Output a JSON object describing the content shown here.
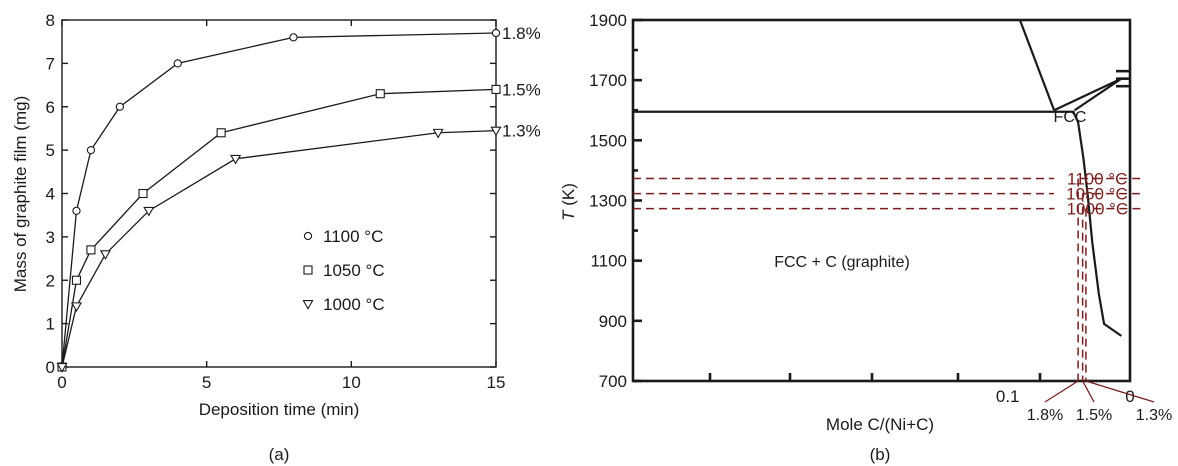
{
  "colors": {
    "ink": "#1a1a1a",
    "dashed": "#7a1f1f"
  },
  "chart_data": [
    {
      "type": "line",
      "panel": "(a)",
      "xlabel": "Deposition time (min)",
      "ylabel": "Mass of graphite film (mg)",
      "xlim": [
        0,
        15
      ],
      "ylim": [
        0,
        8
      ],
      "x_ticks": [
        0,
        5,
        10,
        15
      ],
      "y_ticks": [
        0,
        1,
        2,
        3,
        4,
        5,
        6,
        7,
        8
      ],
      "series": [
        {
          "name": "1100 °C",
          "marker": "circle",
          "end_label": "1.8%",
          "points": [
            [
              0,
              0
            ],
            [
              0.5,
              3.6
            ],
            [
              1,
              5.0
            ],
            [
              2,
              6.0
            ],
            [
              4,
              7.0
            ],
            [
              8,
              7.6
            ],
            [
              15,
              7.7
            ]
          ]
        },
        {
          "name": "1050 °C",
          "marker": "square",
          "end_label": "1.5%",
          "points": [
            [
              0,
              0
            ],
            [
              0.5,
              2.0
            ],
            [
              1,
              2.7
            ],
            [
              2.8,
              4.0
            ],
            [
              5.5,
              5.4
            ],
            [
              11,
              6.3
            ],
            [
              15,
              6.4
            ]
          ]
        },
        {
          "name": "1000 °C",
          "marker": "triangle-down",
          "end_label": "1.3%",
          "points": [
            [
              0,
              0
            ],
            [
              0.5,
              1.4
            ],
            [
              1.5,
              2.6
            ],
            [
              3,
              3.6
            ],
            [
              6,
              4.8
            ],
            [
              13,
              5.4
            ],
            [
              15,
              5.45
            ]
          ]
        }
      ],
      "legend_placement": "center-right"
    },
    {
      "type": "line",
      "panel": "(b)",
      "xlabel": "Mole C/(Ni+C)",
      "ylabel": "T (K)",
      "ylabel_italic": "T",
      "ylabel_unit": " (K)",
      "ylim": [
        700,
        1900
      ],
      "y_ticks": [
        700,
        900,
        1100,
        1300,
        1500,
        1700,
        1900
      ],
      "x_tick_labels": [
        {
          "label": "0.1",
          "value": 0.1
        },
        {
          "label": "0",
          "value": 0
        }
      ],
      "region_labels": [
        "FCC",
        "FCC + C (graphite)"
      ],
      "isotherms": [
        {
          "label": "1100 °C",
          "T": 1373,
          "label_x": 0.0072
        },
        {
          "label": "1050 °C",
          "T": 1323,
          "label_x": 0.0073
        },
        {
          "label": "1000 °C",
          "T": 1273,
          "label_x": 0.0071
        }
      ],
      "solubility_labels": [
        {
          "label": "1.8%",
          "value": 0.018
        },
        {
          "label": "1.5%",
          "value": 0.015
        },
        {
          "label": "1.3%",
          "value": 0.013
        }
      ],
      "boundaries": {
        "eutectic_T": 1595,
        "liquidus_left": [
          [
            0.081,
            1900
          ],
          [
            0.0385,
            1600
          ]
        ],
        "liquidus_right": [
          [
            0.0385,
            1600
          ],
          [
            0.0005,
            1705
          ]
        ],
        "fcc_boundary": [
          [
            0.0205,
            1600
          ],
          [
            0.0005,
            1705
          ]
        ],
        "solvus": [
          [
            0.0215,
            1595
          ],
          [
            0.018,
            1560
          ],
          [
            0.0145,
            1440
          ],
          [
            0.012,
            1320
          ],
          [
            0.0095,
            1160
          ],
          [
            0.0065,
            990
          ],
          [
            0.0045,
            890
          ],
          [
            0.0005,
            850
          ]
        ]
      }
    }
  ],
  "panel_captions": {
    "a": "(a)",
    "b": "(b)"
  }
}
